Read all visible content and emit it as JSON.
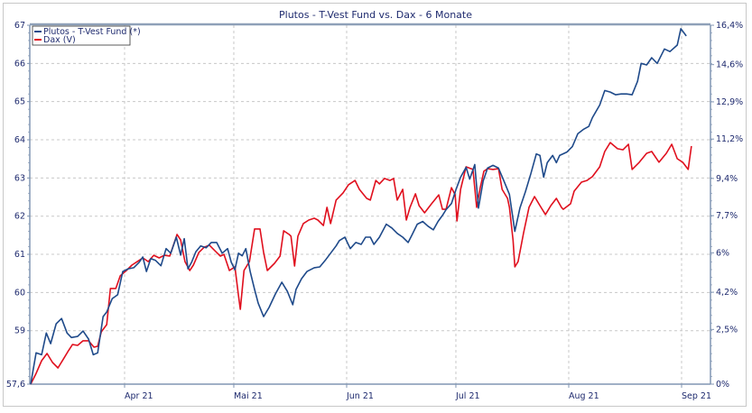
{
  "chart_data": {
    "type": "line",
    "title": "Plutos - T-Vest Fund vs. Dax - 6 Monate",
    "legend_position": "top-left",
    "grid": true,
    "x_unit": "days since chart start",
    "xlim": [
      0,
      186
    ],
    "x_ticks": [
      {
        "label": "Apr 21",
        "day": 26
      },
      {
        "label": "Mai 21",
        "day": 56
      },
      {
        "label": "Jun 21",
        "day": 87
      },
      {
        "label": "Jul 21",
        "day": 117
      },
      {
        "label": "Aug 21",
        "day": 148
      },
      {
        "label": "Sep 21",
        "day": 179
      }
    ],
    "y_left": {
      "ylim": [
        57.6,
        67
      ],
      "ticks": [
        "67",
        "66",
        "65",
        "64",
        "63",
        "62",
        "61",
        "60",
        "59",
        "57,6"
      ],
      "tick_values": [
        67,
        66,
        65,
        64,
        63,
        62,
        61,
        60,
        59,
        57.6
      ]
    },
    "y_right": {
      "ylim": [
        0,
        16.4
      ],
      "ticks": [
        "16,4%",
        "14,6%",
        "12,9%",
        "11,2%",
        "9,4%",
        "7,7%",
        "6%",
        "4,2%",
        "2,5%",
        "0%"
      ],
      "tick_values": [
        16.4,
        14.6,
        12.9,
        11.2,
        9.4,
        7.7,
        6.0,
        4.2,
        2.5,
        0
      ]
    },
    "series": [
      {
        "name": "Plutos - T-Vest Fund (*)",
        "axis": "left",
        "color": "#1f4a8a",
        "x": [
          0.2,
          1.7,
          3.2,
          4.5,
          5.7,
          7.2,
          8.7,
          10.2,
          11.4,
          13.1,
          14.6,
          16.1,
          17.4,
          18.6,
          20.1,
          21.1,
          22.6,
          24.1,
          25.5,
          27.0,
          28.5,
          30.0,
          31.0,
          32.0,
          33.2,
          34.5,
          36.0,
          37.4,
          38.7,
          40.2,
          41.4,
          42.4,
          43.4,
          44.4,
          45.6,
          46.9,
          48.4,
          49.8,
          51.3,
          52.8,
          54.3,
          55.3,
          56.3,
          57.3,
          58.3,
          59.3,
          60.5,
          61.7,
          62.7,
          64.2,
          65.7,
          67.4,
          69.2,
          70.7,
          72.2,
          73.1,
          74.6,
          76.1,
          78.1,
          79.6,
          81.1,
          82.6,
          84.1,
          85.0,
          86.5,
          88.0,
          89.5,
          91.0,
          92.2,
          93.5,
          94.5,
          96.0,
          97.9,
          99.4,
          100.9,
          102.4,
          103.9,
          104.9,
          106.4,
          107.9,
          109.3,
          110.8,
          112.1,
          113.3,
          114.3,
          115.8,
          117.0,
          118.3,
          119.8,
          120.8,
          122.2,
          123.2,
          124.5,
          125.7,
          127.2,
          128.7,
          130.2,
          131.7,
          133.2,
          134.6,
          136.1,
          137.6,
          139.1,
          140.1,
          141.1,
          142.1,
          143.6,
          144.6,
          145.5,
          147.5,
          149.0,
          150.5,
          152.0,
          153.5,
          154.5,
          156.5,
          157.9,
          159.4,
          160.9,
          162.4,
          163.9,
          165.4,
          166.9,
          167.9,
          169.4,
          170.8,
          172.3,
          174.3,
          175.8,
          177.8,
          178.8,
          180.3
        ],
        "values": [
          57.6,
          58.42,
          58.37,
          58.94,
          58.66,
          59.18,
          59.32,
          58.94,
          58.82,
          58.85,
          58.99,
          58.78,
          58.37,
          58.42,
          59.37,
          59.49,
          59.84,
          59.94,
          60.55,
          60.62,
          60.65,
          60.79,
          60.93,
          60.55,
          60.89,
          60.84,
          60.7,
          61.15,
          61.03,
          61.45,
          60.98,
          61.41,
          60.62,
          60.79,
          61.07,
          61.22,
          61.17,
          61.31,
          61.31,
          61.03,
          61.15,
          60.79,
          60.6,
          61.03,
          60.96,
          61.15,
          60.55,
          60.08,
          59.72,
          59.37,
          59.61,
          59.96,
          60.27,
          60.03,
          59.68,
          60.08,
          60.36,
          60.55,
          60.65,
          60.67,
          60.84,
          61.03,
          61.22,
          61.36,
          61.45,
          61.15,
          61.31,
          61.26,
          61.45,
          61.45,
          61.26,
          61.45,
          61.79,
          61.69,
          61.55,
          61.45,
          61.31,
          61.5,
          61.79,
          61.86,
          61.74,
          61.64,
          61.86,
          62.02,
          62.17,
          62.33,
          62.69,
          63.02,
          63.28,
          62.97,
          63.35,
          62.21,
          62.92,
          63.26,
          63.33,
          63.26,
          62.92,
          62.57,
          61.6,
          62.21,
          62.64,
          63.11,
          63.63,
          63.59,
          63.02,
          63.4,
          63.59,
          63.4,
          63.59,
          63.68,
          63.82,
          64.16,
          64.27,
          64.35,
          64.58,
          64.91,
          65.29,
          65.25,
          65.18,
          65.2,
          65.2,
          65.18,
          65.53,
          66.0,
          65.96,
          66.15,
          66.0,
          66.38,
          66.31,
          66.48,
          66.91,
          66.72
        ]
      },
      {
        "name": "Dax (V)",
        "axis": "right",
        "color": "#e0101e",
        "x": [
          0.2,
          1.7,
          3.2,
          4.7,
          6.2,
          7.7,
          9.2,
          10.4,
          11.7,
          13.1,
          14.6,
          16.1,
          17.6,
          18.6,
          19.6,
          21.1,
          22.1,
          23.6,
          24.8,
          26.5,
          28.0,
          29.5,
          31.0,
          32.5,
          34.0,
          35.5,
          36.9,
          38.4,
          40.4,
          41.4,
          42.6,
          43.9,
          44.9,
          46.4,
          47.9,
          49.3,
          50.8,
          52.3,
          53.3,
          54.8,
          56.3,
          57.3,
          57.8,
          58.8,
          60.3,
          61.7,
          63.2,
          64.2,
          65.2,
          67.2,
          68.7,
          69.7,
          71.2,
          71.7,
          72.7,
          73.6,
          75.1,
          76.6,
          78.1,
          79.1,
          80.6,
          81.6,
          82.6,
          84.1,
          86.0,
          87.5,
          89.3,
          90.5,
          92.5,
          93.5,
          95.0,
          96.0,
          97.4,
          98.9,
          99.9,
          100.9,
          102.4,
          103.4,
          104.4,
          105.9,
          106.9,
          108.4,
          110.3,
          112.3,
          113.3,
          114.3,
          115.8,
          116.8,
          117.3,
          118.3,
          119.8,
          121.7,
          122.7,
          123.7,
          124.7,
          125.7,
          127.2,
          128.7,
          129.7,
          131.2,
          131.7,
          132.7,
          133.2,
          134.1,
          135.6,
          137.1,
          138.6,
          140.1,
          141.6,
          143.1,
          144.6,
          146.0,
          146.5,
          148.5,
          149.5,
          151.5,
          153.0,
          154.5,
          156.5,
          157.9,
          159.4,
          161.4,
          162.9,
          164.4,
          165.4,
          167.4,
          169.4,
          170.8,
          172.8,
          174.8,
          176.3,
          177.8,
          179.3,
          180.8,
          181.7
        ],
        "values": [
          0,
          0.49,
          1.07,
          1.4,
          0.99,
          0.74,
          1.15,
          1.48,
          1.81,
          1.77,
          1.98,
          1.98,
          1.69,
          1.73,
          2.39,
          2.72,
          4.37,
          4.37,
          4.95,
          5.19,
          5.44,
          5.6,
          5.77,
          5.6,
          5.89,
          5.77,
          5.89,
          5.85,
          6.84,
          6.59,
          5.6,
          5.19,
          5.44,
          6.02,
          6.26,
          6.35,
          6.1,
          5.85,
          5.93,
          5.19,
          5.36,
          4.04,
          3.42,
          5.19,
          5.6,
          7.09,
          7.09,
          6.02,
          5.19,
          5.52,
          5.85,
          7.01,
          6.84,
          6.76,
          5.4,
          6.76,
          7.34,
          7.5,
          7.58,
          7.5,
          7.25,
          8.08,
          7.34,
          8.41,
          8.74,
          9.11,
          9.31,
          8.9,
          8.49,
          8.41,
          9.31,
          9.15,
          9.4,
          9.31,
          9.4,
          8.41,
          8.9,
          7.5,
          8.08,
          8.7,
          8.16,
          7.83,
          8.24,
          8.65,
          7.99,
          7.99,
          8.98,
          8.65,
          7.46,
          8.9,
          9.93,
          9.81,
          8.08,
          8.98,
          9.73,
          9.85,
          9.81,
          9.85,
          8.9,
          8.49,
          8.08,
          6.59,
          5.36,
          5.6,
          6.92,
          8.08,
          8.57,
          8.16,
          7.75,
          8.16,
          8.49,
          8.08,
          7.99,
          8.24,
          8.82,
          9.23,
          9.31,
          9.48,
          9.93,
          10.63,
          11.04,
          10.76,
          10.71,
          10.96,
          9.81,
          10.14,
          10.55,
          10.63,
          10.14,
          10.55,
          10.96,
          10.3,
          10.14,
          9.81,
          10.88
        ]
      }
    ]
  }
}
